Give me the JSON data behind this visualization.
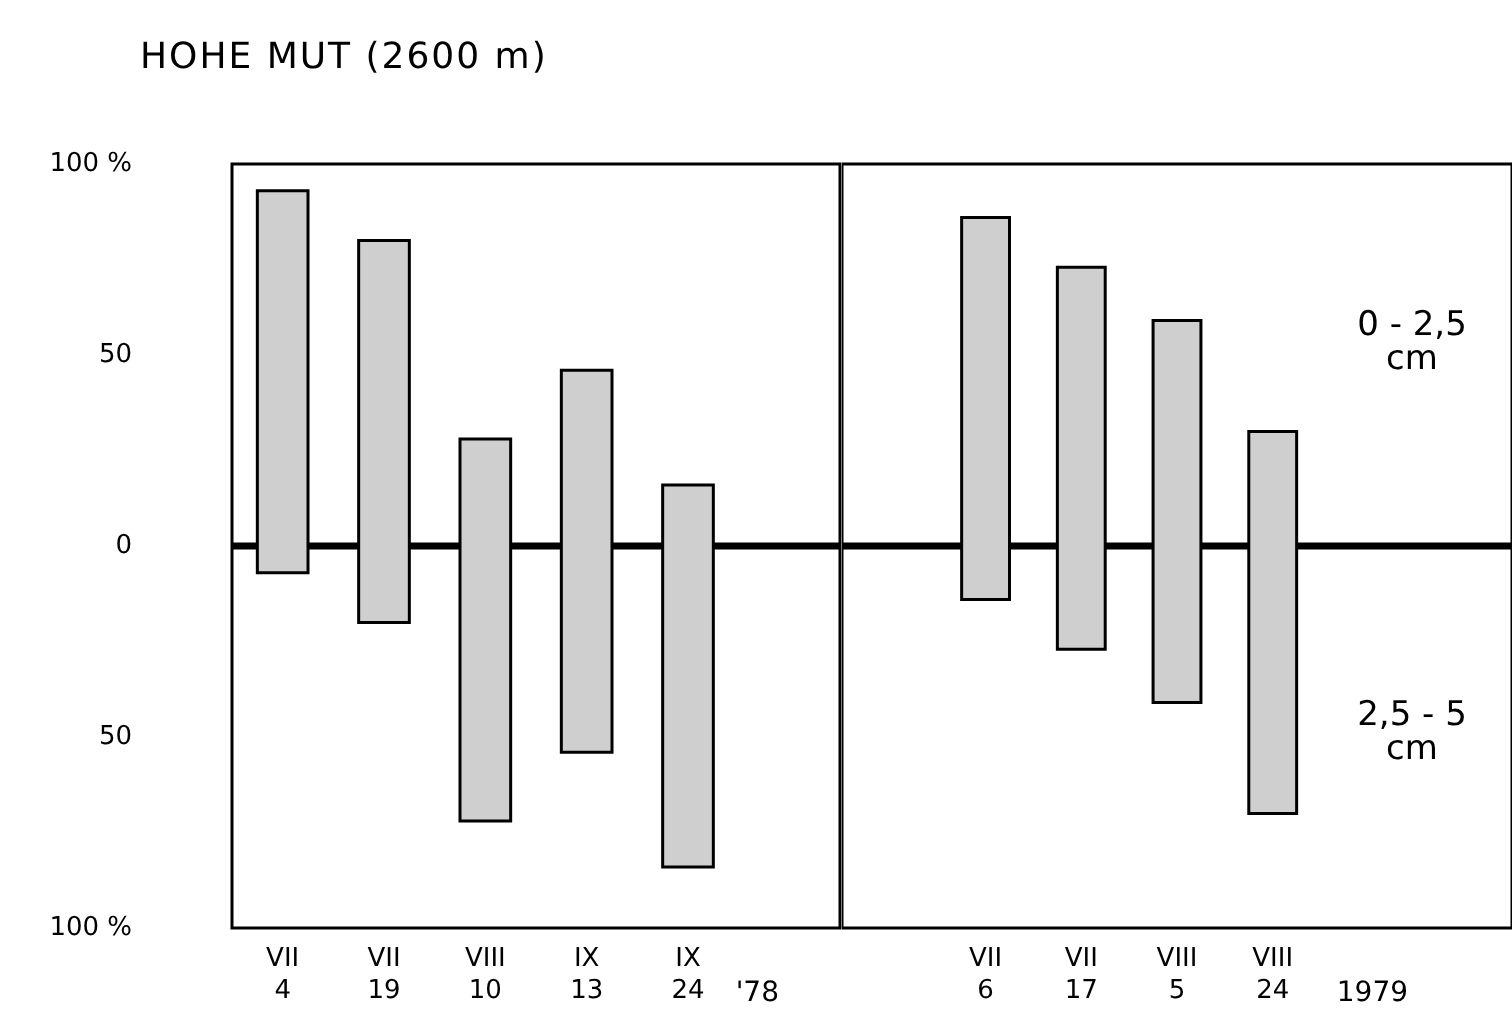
{
  "chart_data": [
    {
      "type": "bar",
      "title": "HOHE MUT (2600 m)",
      "categories": [
        "VII\n4",
        "VII\n19",
        "VIII\n10",
        "IX\n13",
        "IX\n24",
        null
      ],
      "values": [
        100,
        100,
        100,
        100,
        100,
        null
      ],
      "base": [
        -7,
        -20,
        -72,
        -54,
        -84,
        null
      ],
      "color": "#cfcfcf",
      "ylim": [
        -100,
        100
      ],
      "yticks": [
        {
          "value": -100,
          "label": "100 %"
        },
        {
          "value": -50,
          "label": "50"
        },
        0,
        50,
        {
          "value": 100,
          "label": "100 %"
        }
      ],
      "ref_lines": [
        {
          "axis": "y",
          "value": 0,
          "color": "#000000"
        }
      ],
      "annotations": [
        "'78"
      ],
      "grid": false,
      "legend": false
    },
    {
      "type": "bar",
      "categories": [
        null,
        "VII\n6",
        "VII\n17",
        "VIII\n5",
        "VIII\n24",
        null,
        null
      ],
      "values": [
        null,
        100,
        100,
        100,
        100,
        null,
        null
      ],
      "base": [
        null,
        -14,
        -27,
        -41,
        -70,
        null,
        null
      ],
      "color": "#cfcfcf",
      "ylim": [
        -100,
        100
      ],
      "tick_labels": "x",
      "ref_lines": [
        {
          "axis": "y",
          "value": 0,
          "color": "#000000"
        }
      ],
      "annotations": [
        "1979",
        "0 - 2,5\ncm",
        "2,5 - 5\ncm"
      ],
      "grid": false,
      "legend": false
    }
  ]
}
